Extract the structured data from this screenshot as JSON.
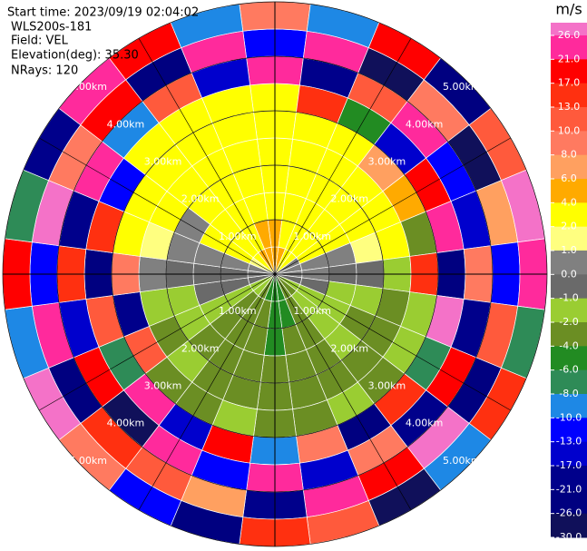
{
  "chart_data": {
    "type": "ppi",
    "annotations": [
      "Start time: 2023/09/19 02:04:02",
      "WLS200s-181",
      "Field: VEL",
      "Elevation(deg): 35.30",
      "NRays: 120"
    ],
    "colorbar_title": "m/s",
    "range_rings": [
      {
        "value": 1,
        "label": "1.00km"
      },
      {
        "value": 2,
        "label": "2.00km"
      },
      {
        "value": 3,
        "label": "3.00km"
      },
      {
        "value": 4,
        "label": "4.00km"
      },
      {
        "value": 5,
        "label": "5.00km"
      }
    ],
    "cticks": [
      {
        "value": 26,
        "label": "26.0"
      },
      {
        "value": 21,
        "label": "21.0"
      },
      {
        "value": 17,
        "label": "17.0"
      },
      {
        "value": 13,
        "label": "13.0"
      },
      {
        "value": 10,
        "label": "10.0"
      },
      {
        "value": 8,
        "label": "8.0"
      },
      {
        "value": 6,
        "label": "6.0"
      },
      {
        "value": 4,
        "label": "4.0"
      },
      {
        "value": 2,
        "label": "2.0"
      },
      {
        "value": 1,
        "label": "1.0"
      },
      {
        "value": 0,
        "label": "0.0"
      },
      {
        "value": -1,
        "label": "-1.0"
      },
      {
        "value": -2,
        "label": "-2.0"
      },
      {
        "value": -4,
        "label": "-4.0"
      },
      {
        "value": -6,
        "label": "-6.0"
      },
      {
        "value": -8,
        "label": "-8.0"
      },
      {
        "value": -10,
        "label": "-10.0"
      },
      {
        "value": -13,
        "label": "-13.0"
      },
      {
        "value": -17,
        "label": "-17.0"
      },
      {
        "value": -21,
        "label": "-21.0"
      },
      {
        "value": -26,
        "label": "-26.0"
      },
      {
        "value": -30,
        "label": "-30.0"
      }
    ],
    "over_color": "#f472c8",
    "colors": [
      "#ff2a9c",
      "#ff0000",
      "#ff3010",
      "#ff5a3c",
      "#ff7a60",
      "#ffa060",
      "#ffaa00",
      "#ffff00",
      "#ffff80",
      "#808080",
      "#6a6a6a",
      "#9acd32",
      "#6b8e23",
      "#228b22",
      "#2e8b57",
      "#1e88e5",
      "#0000ff",
      "#0000cd",
      "#00008b",
      "#000080",
      "#10105a"
    ],
    "azimuths": [
      0,
      15,
      30,
      45,
      60,
      75,
      90,
      105,
      120,
      135,
      150,
      165,
      180,
      195,
      210,
      225,
      240,
      255,
      270,
      285,
      300,
      315,
      330,
      345
    ],
    "range_km": [
      0,
      0.5,
      1,
      1.5,
      2,
      2.5,
      3,
      3.5,
      4,
      4.5,
      5
    ],
    "values": [
      [
        4.5,
        4.5,
        3,
        3,
        3,
        3,
        3,
        25,
        -12,
        8
      ],
      [
        4.5,
        3,
        3,
        3,
        3,
        3,
        14,
        -20,
        22,
        -9
      ],
      [
        3,
        3,
        3,
        3,
        3,
        3,
        -5,
        11,
        -27,
        18
      ],
      [
        3,
        3,
        3,
        3,
        3,
        7,
        -15,
        24,
        9,
        -22
      ],
      [
        0.5,
        3,
        3,
        3,
        3,
        5,
        19,
        -11,
        -28,
        12
      ],
      [
        0.5,
        0.5,
        0.5,
        1.5,
        3,
        -3,
        23,
        -16,
        7,
        28
      ],
      [
        0.5,
        0.5,
        -0.5,
        -0.5,
        -1.5,
        16,
        -24,
        9,
        -13,
        21
      ],
      [
        -0.5,
        -0.5,
        -1.5,
        -1.5,
        -3,
        -1.5,
        27,
        -19,
        12,
        -8
      ],
      [
        -1.5,
        -1.5,
        -1.5,
        -3,
        -3,
        -1.5,
        -7,
        20,
        -25,
        15
      ],
      [
        -3,
        -1.5,
        -1.5,
        -1.5,
        -3,
        -3,
        13,
        -18,
        26,
        -10
      ],
      [
        -3,
        -3,
        -3,
        -3,
        -3,
        -1.5,
        -22,
        9,
        17,
        -29
      ],
      [
        -5,
        -5,
        -3,
        -3,
        -3,
        -3,
        8,
        -14,
        22,
        11
      ],
      [
        -5,
        -5,
        -5,
        -3,
        -3,
        -3,
        -9,
        25,
        -20,
        14
      ],
      [
        -5,
        -3,
        -3,
        -3,
        -3,
        -1.5,
        18,
        -12,
        7,
        -26
      ],
      [
        -3,
        -3,
        -3,
        -3,
        -3,
        -3,
        -16,
        21,
        10,
        -11
      ],
      [
        -1.5,
        -3,
        -3,
        -3,
        -1.5,
        -3,
        24,
        -27,
        15,
        9
      ],
      [
        -1.5,
        -1.5,
        -1.5,
        -1.5,
        -3,
        12,
        -8,
        19,
        -23,
        27
      ],
      [
        -0.5,
        -0.5,
        -0.5,
        -1.5,
        -1.5,
        -20,
        11,
        -15,
        23,
        -9
      ],
      [
        0.5,
        -0.5,
        -0.5,
        -0.5,
        0.5,
        9,
        -25,
        16,
        -12,
        20
      ],
      [
        0.5,
        0.5,
        0.5,
        0.5,
        1.5,
        3,
        14,
        -21,
        28,
        -7
      ],
      [
        1.5,
        3,
        3,
        0.5,
        3,
        3,
        -13,
        22,
        8,
        -18
      ],
      [
        3,
        3,
        3,
        3,
        3,
        3,
        3,
        -10,
        17,
        24
      ],
      [
        4.5,
        3,
        3,
        3,
        3,
        3,
        3,
        12,
        -26,
        19
      ],
      [
        4.5,
        4.5,
        3,
        3,
        3,
        3,
        3,
        -17,
        21,
        -9
      ]
    ]
  }
}
